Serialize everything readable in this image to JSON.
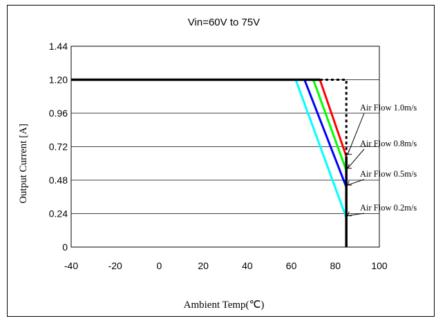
{
  "chart_data": {
    "type": "line",
    "title": "Vin=60V to 75V",
    "xlabel": "Ambient Temp(℃)",
    "ylabel": "Output Current [A]",
    "xlim": [
      -40,
      100
    ],
    "ylim": [
      0,
      1.44
    ],
    "x_ticks": [
      "-40",
      "-20",
      "0",
      "20",
      "40",
      "60",
      "80",
      "100"
    ],
    "y_ticks": [
      "0",
      "0.24",
      "0.48",
      "0.72",
      "0.96",
      "1.20",
      "1.44"
    ],
    "grid": "horizontal",
    "series": [
      {
        "name": "Air Flow 1.0m/s",
        "color": "#ff0000",
        "x": [
          -40,
          73,
          85
        ],
        "y": [
          1.2,
          1.2,
          0.65
        ]
      },
      {
        "name": "Air Flow 0.8m/s",
        "color": "#00ff00",
        "x": [
          -40,
          70,
          85
        ],
        "y": [
          1.2,
          1.2,
          0.55
        ]
      },
      {
        "name": "Air Flow 0.5m/s",
        "color": "#0000ff",
        "x": [
          -40,
          66,
          85
        ],
        "y": [
          1.2,
          1.2,
          0.43
        ]
      },
      {
        "name": "Air Flow 0.2m/s",
        "color": "#00ffff",
        "x": [
          -40,
          62,
          85
        ],
        "y": [
          1.2,
          1.2,
          0.21
        ]
      }
    ],
    "limit_line": {
      "color": "#000000",
      "x": [
        -40,
        73
      ],
      "y": [
        1.2,
        1.2
      ]
    },
    "limit_dotted": {
      "x": [
        73,
        85,
        85
      ],
      "y": [
        1.2,
        1.2,
        0.65
      ]
    },
    "limit_vertical": {
      "x": [
        85,
        85
      ],
      "y": [
        0.65,
        0
      ]
    }
  }
}
